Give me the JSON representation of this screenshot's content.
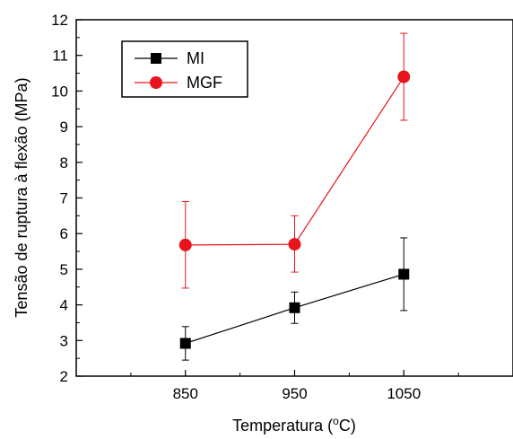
{
  "chart_data": {
    "type": "line",
    "title": "",
    "xlabel_prefix": "Temperatura (",
    "xlabel_sup": "o",
    "xlabel_suffix": "C)",
    "ylabel": "Tensão de ruptura à flexão (MPa)",
    "x": [
      850,
      950,
      1050
    ],
    "x_ticks": [
      "850",
      "950",
      "1050"
    ],
    "xlim": [
      750,
      1150
    ],
    "ylim": [
      2,
      12
    ],
    "y_ticks": [
      "2",
      "3",
      "4",
      "5",
      "6",
      "7",
      "8",
      "9",
      "10",
      "11",
      "12"
    ],
    "grid": false,
    "legend_position": "top-left",
    "series": [
      {
        "name": "MI",
        "color": "#000000",
        "marker": "square",
        "values": [
          2.92,
          3.92,
          4.86
        ],
        "error_low": [
          2.45,
          3.48,
          3.84
        ],
        "error_high": [
          3.39,
          4.36,
          5.88
        ]
      },
      {
        "name": "MGF",
        "color": "#e8141c",
        "marker": "circle",
        "values": [
          5.68,
          5.7,
          10.4
        ],
        "error_low": [
          4.47,
          4.92,
          9.18
        ],
        "error_high": [
          6.9,
          6.5,
          11.62
        ]
      }
    ]
  }
}
